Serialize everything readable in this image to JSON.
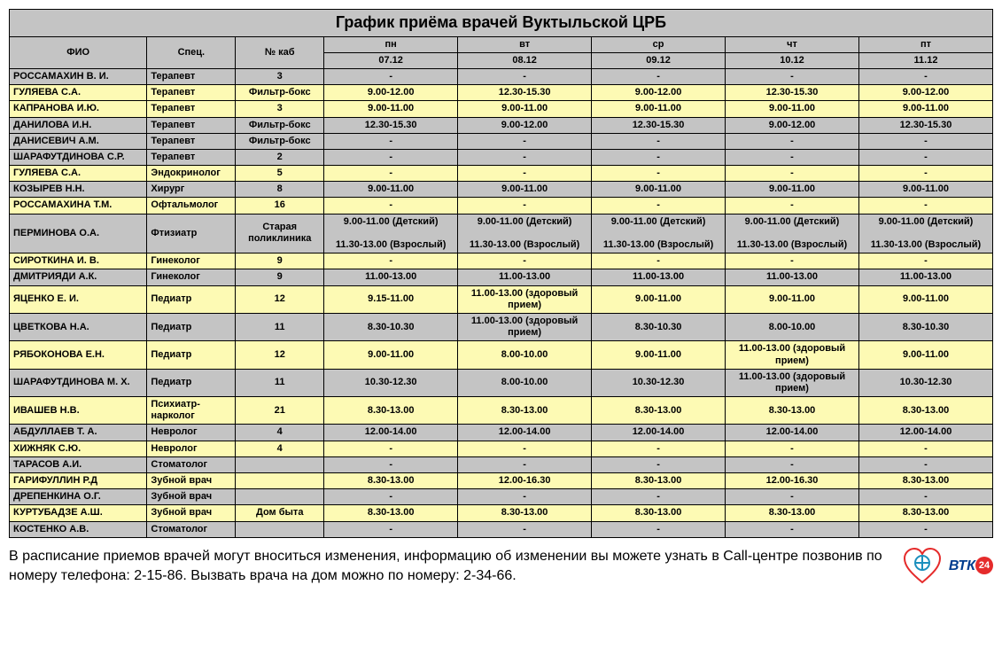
{
  "title": "График приёма врачей Вуктыльской ЦРБ",
  "colors": {
    "header_bg": "#c4c4c4",
    "row_yellow": "#fdfab4",
    "row_gray": "#c4c4c4",
    "border": "#000000",
    "text": "#000000"
  },
  "header": {
    "fio": "ФИО",
    "spec": "Спец.",
    "cab": "№ каб",
    "days": [
      "пн",
      "вт",
      "ср",
      "чт",
      "пт"
    ],
    "dates": [
      "07.12",
      "08.12",
      "09.12",
      "10.12",
      "11.12"
    ]
  },
  "rows": [
    {
      "color": "gray",
      "name": "РОССАМАХИН В. И.",
      "spec": "Терапевт",
      "cab": "3",
      "s": [
        "-",
        "-",
        "-",
        "-",
        "-"
      ]
    },
    {
      "color": "yellow",
      "name": "ГУЛЯЕВА С.А.",
      "spec": "Терапевт",
      "cab": "Фильтр-бокс",
      "s": [
        "9.00-12.00",
        "12.30-15.30",
        "9.00-12.00",
        "12.30-15.30",
        "9.00-12.00"
      ]
    },
    {
      "color": "yellow",
      "name": "КАПРАНОВА И.Ю.",
      "spec": "Терапевт",
      "cab": "3",
      "s": [
        "9.00-11.00",
        "9.00-11.00",
        "9.00-11.00",
        "9.00-11.00",
        "9.00-11.00"
      ]
    },
    {
      "color": "gray",
      "name": "ДАНИЛОВА И.Н.",
      "spec": "Терапевт",
      "cab": "Фильтр-бокс",
      "s": [
        "12.30-15.30",
        "9.00-12.00",
        "12.30-15.30",
        "9.00-12.00",
        "12.30-15.30"
      ]
    },
    {
      "color": "gray",
      "name": "ДАНИСЕВИЧ А.М.",
      "spec": "Терапевт",
      "cab": "Фильтр-бокс",
      "s": [
        "-",
        "-",
        "-",
        "-",
        "-"
      ]
    },
    {
      "color": "gray",
      "name": "ШАРАФУТДИНОВА С.Р.",
      "spec": "Терапевт",
      "cab": "2",
      "s": [
        "-",
        "-",
        "-",
        "-",
        "-"
      ]
    },
    {
      "color": "yellow",
      "name": "ГУЛЯЕВА С.А.",
      "spec": "Эндокринолог",
      "cab": "5",
      "s": [
        "-",
        "-",
        "-",
        "-",
        "-"
      ]
    },
    {
      "color": "gray",
      "name": "КОЗЫРЕВ Н.Н.",
      "spec": "Хирург",
      "cab": "8",
      "s": [
        "9.00-11.00",
        "9.00-11.00",
        "9.00-11.00",
        "9.00-11.00",
        "9.00-11.00"
      ]
    },
    {
      "color": "yellow",
      "name": "РОССАМАХИНА Т.М.",
      "spec": "Офтальмолог",
      "cab": "16",
      "s": [
        "-",
        "-",
        "-",
        "-",
        "-"
      ]
    },
    {
      "color": "gray",
      "name": "ПЕРМИНОВА О.А.",
      "spec": "Фтизиатр",
      "cab": "Старая поликлиника",
      "s": [
        "9.00-11.00 (Детский)\n\n11.30-13.00 (Взрослый)",
        "9.00-11.00 (Детский)\n\n11.30-13.00 (Взрослый)",
        "9.00-11.00 (Детский)\n\n11.30-13.00 (Взрослый)",
        "9.00-11.00 (Детский)\n\n11.30-13.00 (Взрослый)",
        "9.00-11.00 (Детский)\n\n11.30-13.00 (Взрослый)"
      ]
    },
    {
      "color": "yellow",
      "name": "СИРОТКИНА И. В.",
      "spec": "Гинеколог",
      "cab": "9",
      "s": [
        "-",
        "-",
        "-",
        "-",
        "-"
      ]
    },
    {
      "color": "gray",
      "name": "ДМИТРИЯДИ А.К.",
      "spec": "Гинеколог",
      "cab": "9",
      "s": [
        "11.00-13.00",
        "11.00-13.00",
        "11.00-13.00",
        "11.00-13.00",
        "11.00-13.00"
      ]
    },
    {
      "color": "yellow",
      "name": "ЯЦЕНКО Е. И.",
      "spec": "Педиатр",
      "cab": "12",
      "s": [
        "9.15-11.00",
        "11.00-13.00 (здоровый прием)",
        "9.00-11.00",
        "9.00-11.00",
        "9.00-11.00"
      ]
    },
    {
      "color": "gray",
      "name": "ЦВЕТКОВА Н.А.",
      "spec": "Педиатр",
      "cab": "11",
      "s": [
        "8.30-10.30",
        "11.00-13.00 (здоровый прием)",
        "8.30-10.30",
        "8.00-10.00",
        "8.30-10.30"
      ]
    },
    {
      "color": "yellow",
      "name": "РЯБОКОНОВА Е.Н.",
      "spec": "Педиатр",
      "cab": "12",
      "s": [
        "9.00-11.00",
        "8.00-10.00",
        "9.00-11.00",
        "11.00-13.00 (здоровый прием)",
        "9.00-11.00"
      ]
    },
    {
      "color": "gray",
      "name": "ШАРАФУТДИНОВА М. Х.",
      "spec": "Педиатр",
      "cab": "11",
      "s": [
        "10.30-12.30",
        "8.00-10.00",
        "10.30-12.30",
        "11.00-13.00 (здоровый прием)",
        "10.30-12.30"
      ]
    },
    {
      "color": "yellow",
      "name": "ИВАШЕВ Н.В.",
      "spec": "Психиатр-нарколог",
      "cab": "21",
      "s": [
        "8.30-13.00",
        "8.30-13.00",
        "8.30-13.00",
        "8.30-13.00",
        "8.30-13.00"
      ]
    },
    {
      "color": "gray",
      "name": "АБДУЛЛАЕВ Т. А.",
      "spec": "Невролог",
      "cab": "4",
      "s": [
        "12.00-14.00",
        "12.00-14.00",
        "12.00-14.00",
        "12.00-14.00",
        "12.00-14.00"
      ]
    },
    {
      "color": "yellow",
      "name": "ХИЖНЯК С.Ю.",
      "spec": "Невролог",
      "cab": "4",
      "s": [
        "-",
        "-",
        "-",
        "-",
        "-"
      ]
    },
    {
      "color": "gray",
      "name": "ТАРАСОВ А.И.",
      "spec": "Стоматолог",
      "cab": "",
      "s": [
        "-",
        "-",
        "-",
        "-",
        "-"
      ]
    },
    {
      "color": "yellow",
      "name": "ГАРИФУЛЛИН Р.Д",
      "spec": "Зубной врач",
      "cab": "",
      "s": [
        "8.30-13.00",
        "12.00-16.30",
        "8.30-13.00",
        "12.00-16.30",
        "8.30-13.00"
      ]
    },
    {
      "color": "gray",
      "name": "ДРЕПЕНКИНА О.Г.",
      "spec": "Зубной врач",
      "cab": "",
      "s": [
        "-",
        "-",
        "-",
        "-",
        "-"
      ]
    },
    {
      "color": "yellow",
      "name": "КУРТУБАДЗЕ А.Ш.",
      "spec": "Зубной врач",
      "cab": "Дом быта",
      "s": [
        "8.30-13.00",
        "8.30-13.00",
        "8.30-13.00",
        "8.30-13.00",
        "8.30-13.00"
      ]
    },
    {
      "color": "gray",
      "name": "КОСТЕНКО А.В.",
      "spec": "Стоматолог",
      "cab": "",
      "s": [
        "-",
        "-",
        "-",
        "-",
        "-"
      ]
    }
  ],
  "footer": "В расписание приемов врачей могут вноситься изменения, информацию об изменении вы можете узнать в Call-центре позвонив по номеру телефона: 2-15-86. Вызвать врача на дом можно по номеру: 2-34-66.",
  "logo_vtk_text": "ВТК",
  "logo_vtk_bubble": "24"
}
